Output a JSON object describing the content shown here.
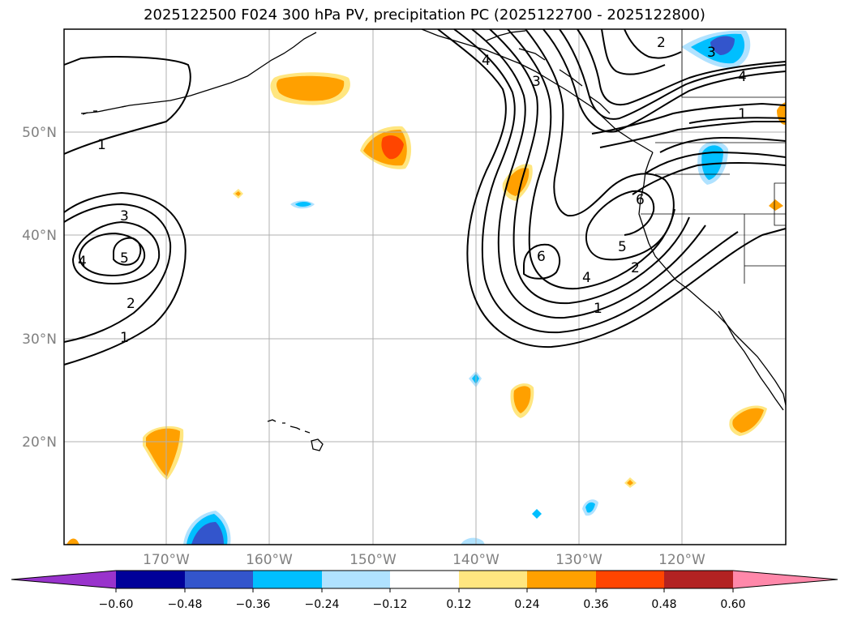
{
  "title": "2025122500 F024 300 hPa PV, precipitation PC (2025122700 - 2025122800)",
  "latitude_labels": [
    "50°N",
    "40°N",
    "30°N",
    "20°N"
  ],
  "longitude_labels": [
    "170°W",
    "160°W",
    "150°W",
    "140°W",
    "130°W",
    "120°W"
  ],
  "colorbar": {
    "tick_labels": [
      "−0.60",
      "−0.48",
      "−0.36",
      "−0.24",
      "−0.12",
      "0.12",
      "0.24",
      "0.36",
      "0.48",
      "0.60"
    ],
    "colors": {
      "under": "#9933cc",
      "bins": [
        "#000099",
        "#3355cc",
        "#00bfff",
        "#b0e2ff",
        "#ffffff",
        "#ffe680",
        "#ffa000",
        "#ff4500",
        "#b22222"
      ],
      "over": "#ff88aa"
    }
  },
  "contour_labels": [
    "1",
    "3",
    "4",
    "5",
    "2",
    "1",
    "4",
    "3",
    "2",
    "3",
    "4",
    "1",
    "6",
    "6",
    "5",
    "2",
    "4",
    "1"
  ],
  "colors": {
    "contour": "#000000",
    "grid": "#b0b0b0",
    "coast": "#000000"
  }
}
